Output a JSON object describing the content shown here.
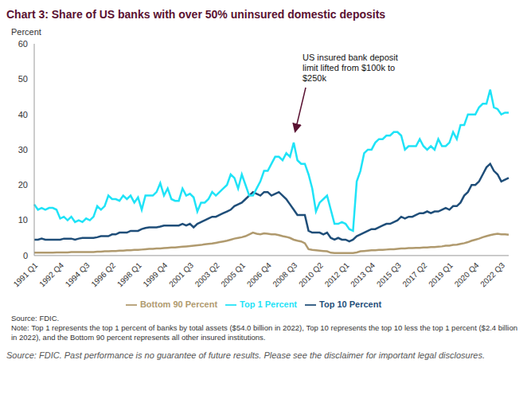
{
  "chart_data": {
    "type": "line",
    "title": "Chart 3: Share of US banks with over 50% uninsured domestic deposits",
    "y_label": "Percent",
    "annotation": "US insured bank deposit limit lifted from $100k to $250k",
    "source": "Source: FDIC.",
    "note": "Note: Top 1 represents the top 1 percent of banks by total assets ($54.0 billion in 2022), Top 10 represents the top 10 less the top 1 percent ($2.4 billion in 2022), and the Bottom 90 percent represents all other insured institutions.",
    "footer": "Source: FDIC. Past performance is no guarantee of future results. Please see the disclaimer for important legal disclosures.",
    "categories": [
      "1991 Q1",
      null,
      null,
      null,
      null,
      null,
      null,
      "1992 Q4",
      null,
      null,
      null,
      null,
      null,
      null,
      "1994 Q3",
      null,
      null,
      null,
      null,
      null,
      null,
      "1996 Q2",
      null,
      null,
      null,
      null,
      null,
      null,
      "1998 Q1",
      null,
      null,
      null,
      null,
      null,
      null,
      "1999 Q4",
      null,
      null,
      null,
      null,
      null,
      null,
      "2001 Q3",
      null,
      null,
      null,
      null,
      null,
      null,
      "2003 Q2",
      null,
      null,
      null,
      null,
      null,
      null,
      "2005 Q1",
      null,
      null,
      null,
      null,
      null,
      null,
      "2006 Q4",
      null,
      null,
      null,
      null,
      null,
      null,
      "2008 Q3",
      null,
      null,
      null,
      null,
      null,
      null,
      "2010 Q2",
      null,
      null,
      null,
      null,
      null,
      null,
      "2012 Q1",
      null,
      null,
      null,
      null,
      null,
      null,
      "2013 Q4",
      null,
      null,
      null,
      null,
      null,
      null,
      "2015 Q3",
      null,
      null,
      null,
      null,
      null,
      null,
      "2017 Q2",
      null,
      null,
      null,
      null,
      null,
      null,
      "2019 Q1",
      null,
      null,
      null,
      null,
      null,
      null,
      "2020 Q4",
      null,
      null,
      null,
      null,
      null,
      null,
      "2022 Q3",
      null,
      null
    ],
    "series": [
      {
        "name": "Bottom 90 Percent",
        "color": "#b09a6e",
        "values": [
          0.8,
          0.8,
          0.8,
          0.8,
          0.8,
          0.8,
          0.9,
          0.9,
          0.9,
          0.9,
          1,
          1,
          1,
          1,
          1,
          1,
          1,
          1.1,
          1.1,
          1.2,
          1.2,
          1.3,
          1.3,
          1.4,
          1.4,
          1.5,
          1.5,
          1.6,
          1.6,
          1.7,
          1.8,
          1.9,
          1.9,
          2,
          2,
          2.1,
          2.2,
          2.3,
          2.3,
          2.4,
          2.5,
          2.6,
          2.7,
          2.8,
          2.9,
          3,
          3.2,
          3.3,
          3.4,
          3.6,
          3.8,
          4,
          4.2,
          4.5,
          4.8,
          5,
          5.2,
          5.5,
          6,
          6.5,
          6.2,
          6,
          6.3,
          6.2,
          6,
          6,
          5.8,
          5.5,
          5.3,
          5,
          4.5,
          4.2,
          4,
          3.5,
          1.8,
          1.6,
          1.5,
          1.4,
          1.3,
          1.2,
          0.8,
          0.7,
          0.7,
          0.7,
          0.7,
          0.7,
          0.7,
          0.9,
          1.2,
          1.3,
          1.4,
          1.5,
          1.5,
          1.6,
          1.6,
          1.7,
          1.8,
          1.8,
          1.9,
          2,
          2,
          2.1,
          2.1,
          2.2,
          2.2,
          2.3,
          2.3,
          2.4,
          2.4,
          2.5,
          2.6,
          2.8,
          2.8,
          3,
          3.1,
          3.3,
          3.5,
          3.8,
          4.2,
          4.5,
          4.8,
          5.2,
          5.5,
          5.8,
          6,
          6.2,
          6,
          6,
          5.9
        ]
      },
      {
        "name": "Top 10 Percent",
        "color": "#1f4e79",
        "values": [
          4.5,
          4.5,
          4.8,
          4.5,
          4.5,
          4.5,
          4.5,
          4.5,
          4.8,
          4.8,
          4.8,
          4.5,
          4.8,
          5,
          5,
          5,
          5,
          5.2,
          5.5,
          5.5,
          5.5,
          6,
          6,
          6.5,
          6.5,
          6.5,
          7,
          7,
          7,
          7.5,
          7.8,
          8,
          8,
          8,
          8.2,
          8.5,
          8.5,
          8.5,
          8.5,
          8.5,
          9,
          8.5,
          9,
          8,
          9,
          9.5,
          10,
          10.5,
          11,
          11,
          11.5,
          12,
          12.5,
          13,
          14,
          14.5,
          15,
          16,
          17,
          18,
          17.5,
          17,
          18,
          18,
          17,
          17.5,
          18,
          17,
          16,
          14.5,
          13,
          11.5,
          11.5,
          11.5,
          7,
          6.5,
          6.5,
          6.5,
          6,
          6.5,
          5,
          4.5,
          5,
          4.5,
          4.5,
          4,
          4.5,
          5.5,
          6,
          6.5,
          7,
          7.5,
          7.5,
          8,
          8.5,
          9,
          9,
          9.5,
          10,
          11,
          10.5,
          11,
          11,
          11.5,
          12,
          12,
          12.5,
          12,
          12.5,
          12.5,
          13,
          13.5,
          13,
          14,
          14,
          15,
          17,
          18,
          20,
          20,
          21,
          23,
          25,
          26,
          24,
          23,
          21,
          21.5,
          22
        ]
      },
      {
        "name": "Top 1 Percent",
        "color": "#1fe3f7",
        "values": [
          14.5,
          13,
          13.5,
          13,
          13.5,
          13.5,
          13,
          10.5,
          11,
          10,
          11,
          9.5,
          10,
          9.5,
          10.5,
          10,
          11,
          14,
          13,
          14,
          17,
          16,
          16,
          15.5,
          17,
          16,
          17,
          15,
          16.5,
          13,
          17,
          17,
          17,
          18,
          20.5,
          17,
          19,
          16,
          15.5,
          15.5,
          19,
          17,
          17.5,
          16.5,
          12.5,
          15,
          15,
          16,
          18,
          17,
          18,
          19,
          20,
          23,
          22,
          19,
          23,
          20,
          17,
          17,
          19,
          21,
          24,
          24,
          26,
          28,
          28,
          27,
          29,
          28,
          32,
          27,
          26,
          26,
          23,
          19,
          12.5,
          15,
          16,
          17,
          13,
          9,
          9,
          9.5,
          9,
          7.5,
          7,
          21,
          24,
          29,
          30,
          30,
          32,
          33,
          33,
          34,
          34,
          35,
          35,
          34,
          30,
          31,
          31,
          31,
          33,
          31,
          30,
          31,
          30,
          33,
          31,
          31,
          32,
          35,
          33,
          37,
          37,
          40,
          40,
          40,
          42,
          43,
          43,
          47,
          42,
          41.5,
          40,
          40.5,
          40.5
        ]
      }
    ],
    "ylim": [
      0,
      60
    ],
    "yticks": [
      0,
      10,
      20,
      30,
      40,
      50,
      60
    ],
    "grid": false,
    "legend": "bottom"
  }
}
